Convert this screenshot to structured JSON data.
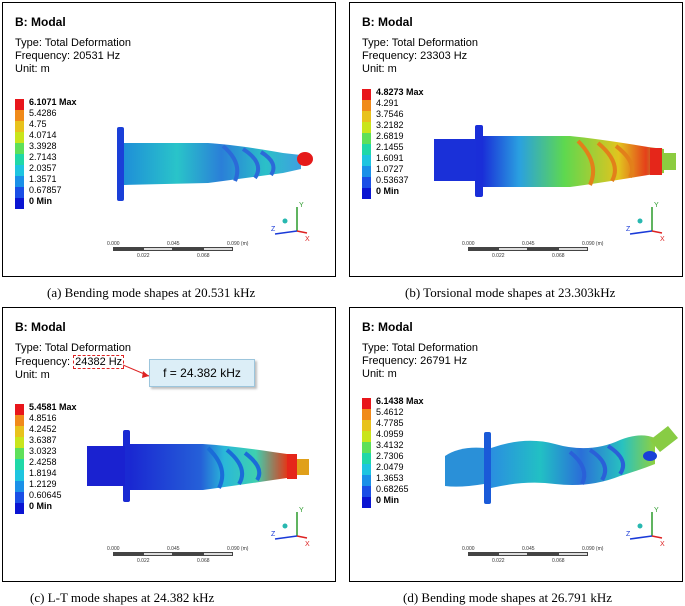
{
  "panels": [
    {
      "title": "B: Modal",
      "type": "Type: Total Deformation",
      "freq_label": "Frequency: ",
      "freq_value": "20531 Hz",
      "unit": "Unit: m",
      "legend": [
        "6.1071 Max",
        "5.4286",
        "4.75",
        "4.0714",
        "3.3928",
        "2.7143",
        "2.0357",
        "1.3571",
        "0.67857",
        "0 Min"
      ],
      "scale_ticks_top": [
        "0.000",
        "0.045",
        "0.090 (m)"
      ],
      "scale_ticks_bottom": [
        "0.022",
        "0.068"
      ],
      "axes": {
        "x": "X",
        "y": "Y",
        "z": "Z"
      },
      "caption": "(a)  Bending mode shapes at 20.531 kHz"
    },
    {
      "title": "B: Modal",
      "type": "Type: Total Deformation",
      "freq_label": "Frequency: ",
      "freq_value": "23303 Hz",
      "unit": "Unit: m",
      "legend": [
        "4.8273 Max",
        "4.291",
        "3.7546",
        "3.2182",
        "2.6819",
        "2.1455",
        "1.6091",
        "1.0727",
        "0.53637",
        "0 Min"
      ],
      "scale_ticks_top": [
        "0.000",
        "0.045",
        "0.090 (m)"
      ],
      "scale_ticks_bottom": [
        "0.022",
        "0.068"
      ],
      "axes": {
        "x": "X",
        "y": "Y",
        "z": "Z"
      },
      "caption": "(b)   Torsional mode shapes at 23.303kHz"
    },
    {
      "title": "B: Modal",
      "type": "Type: Total Deformation",
      "freq_label": "Frequency: ",
      "freq_value": "24382 Hz",
      "unit": "Unit: m",
      "legend": [
        "5.4581 Max",
        "4.8516",
        "4.2452",
        "3.6387",
        "3.0323",
        "2.4258",
        "1.8194",
        "1.2129",
        "0.60645",
        "0 Min"
      ],
      "scale_ticks_top": [
        "0.000",
        "0.045",
        "0.090 (m)"
      ],
      "scale_ticks_bottom": [
        "0.022",
        "0.068"
      ],
      "axes": {
        "x": "X",
        "y": "Y",
        "z": "Z"
      },
      "callout": "f = 24.382 kHz",
      "caption": "(c)  L-T mode shapes at 24.382 kHz"
    },
    {
      "title": "B: Modal",
      "type": "Type: Total Deformation",
      "freq_label": "Frequency: ",
      "freq_value": "26791 Hz",
      "unit": "Unit: m",
      "legend": [
        "6.1438 Max",
        "5.4612",
        "4.7785",
        "4.0959",
        "3.4132",
        "2.7306",
        "2.0479",
        "1.3653",
        "0.68265",
        "0 Min"
      ],
      "scale_ticks_top": [
        "0.000",
        "0.045",
        "0.090 (m)"
      ],
      "scale_ticks_bottom": [
        "0.022",
        "0.068"
      ],
      "axes": {
        "x": "X",
        "y": "Y",
        "z": "Z"
      },
      "caption": "(d)   Bending mode shapes at 26.791 kHz"
    }
  ],
  "legend_colors": [
    "#e8161b",
    "#f08a1a",
    "#e8c21c",
    "#c9e51c",
    "#5ee05a",
    "#20d8a8",
    "#1ec5e0",
    "#1a90e8",
    "#1a4ee6",
    "#0a14d2"
  ]
}
